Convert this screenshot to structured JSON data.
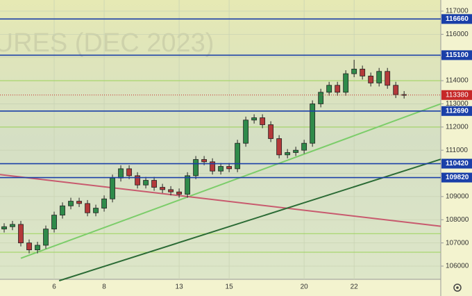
{
  "chart_data": {
    "type": "candlestick",
    "watermark": "URES (DEC 2023)",
    "categories": [
      null,
      null,
      null,
      null,
      null,
      null,
      "6",
      null,
      null,
      null,
      null,
      null,
      "8",
      null,
      null,
      null,
      null,
      null,
      null,
      null,
      null,
      "13",
      null,
      null,
      null,
      null,
      null,
      "15",
      null,
      null,
      null,
      null,
      null,
      null,
      null,
      null,
      "20",
      null,
      null,
      null,
      null,
      null,
      "22",
      null,
      null,
      null,
      null,
      null,
      null
    ],
    "open": [
      107600,
      107700,
      107800,
      107000,
      106700,
      106900,
      107600,
      108200,
      108600,
      108800,
      108700,
      108300,
      108500,
      108900,
      109800,
      110200,
      109900,
      109500,
      109700,
      109400,
      109300,
      109200,
      109100,
      109900,
      110600,
      110500,
      110100,
      110300,
      110200,
      111300,
      112300,
      112400,
      112100,
      111500,
      110800,
      110900,
      111000,
      111300,
      113000,
      113500,
      113800,
      113500,
      114300,
      114500,
      114200,
      113900,
      114400,
      113800,
      113400
    ],
    "high": [
      107850,
      107950,
      107950,
      107150,
      107050,
      107750,
      108350,
      108750,
      108950,
      108950,
      108850,
      108650,
      109050,
      109950,
      110350,
      110350,
      110050,
      109850,
      109850,
      109550,
      109450,
      109350,
      110050,
      110750,
      110750,
      110650,
      110450,
      110450,
      111450,
      112450,
      112550,
      112550,
      112250,
      111650,
      111050,
      111150,
      111450,
      113150,
      113650,
      113950,
      113950,
      114450,
      114900,
      114650,
      114350,
      114550,
      114550,
      113950,
      113550
    ],
    "low": [
      107450,
      107550,
      106850,
      106550,
      106550,
      106750,
      107450,
      108050,
      108450,
      108550,
      108150,
      108150,
      108350,
      108750,
      109650,
      109750,
      109350,
      109350,
      109250,
      109150,
      109050,
      108950,
      108950,
      109750,
      110350,
      109950,
      109950,
      110050,
      110050,
      111150,
      112150,
      111950,
      111350,
      110650,
      110650,
      110750,
      110850,
      111150,
      112850,
      113350,
      113350,
      113350,
      114150,
      114050,
      113750,
      113750,
      113650,
      113250,
      113230
    ],
    "close": [
      107700,
      107800,
      107000,
      106700,
      106900,
      107600,
      108200,
      108600,
      108800,
      108700,
      108300,
      108500,
      108900,
      109800,
      110200,
      109900,
      109500,
      109700,
      109400,
      109300,
      109200,
      109100,
      109900,
      110600,
      110500,
      110100,
      110300,
      110200,
      111300,
      112300,
      112400,
      112100,
      111500,
      110800,
      110900,
      111000,
      111300,
      113000,
      113500,
      113800,
      113500,
      114300,
      114500,
      114200,
      113900,
      114400,
      113800,
      113400,
      113380
    ],
    "up_color": "#2f8a4a",
    "down_color": "#b3393a",
    "xlim": [
      -0.5,
      52.4
    ],
    "ylim": [
      105430,
      117480
    ],
    "yticks": [
      106000,
      107000,
      108000,
      109000,
      110000,
      111000,
      112000,
      113000,
      114000,
      115000,
      116000,
      117000
    ],
    "grid": true,
    "levels": [
      {
        "value": 116660,
        "color": "#1a3fa8"
      },
      {
        "value": 115100,
        "color": "#1a3fa8"
      },
      {
        "value": 112690,
        "color": "#1a3fa8"
      },
      {
        "value": 110420,
        "color": "#1a3fa8"
      },
      {
        "value": 109820,
        "color": "#1a3fa8"
      }
    ],
    "current_price": {
      "value": 113380,
      "color": "#c62828"
    },
    "minor_levels": [
      114000,
      112000,
      107400,
      106600
    ],
    "minor_level_color": "#9bd35a",
    "trendlines": [
      {
        "x": [
          2,
          52.4
        ],
        "y": [
          106337,
          113000
        ],
        "color": "#7ccd6a"
      },
      {
        "x": [
          -0.5,
          52.4
        ],
        "y": [
          109950,
          107720
        ],
        "color": "#c85a6e"
      },
      {
        "x": [
          6.6,
          52.4
        ],
        "y": [
          105370,
          110610
        ],
        "color": "#2b6b35"
      }
    ]
  }
}
